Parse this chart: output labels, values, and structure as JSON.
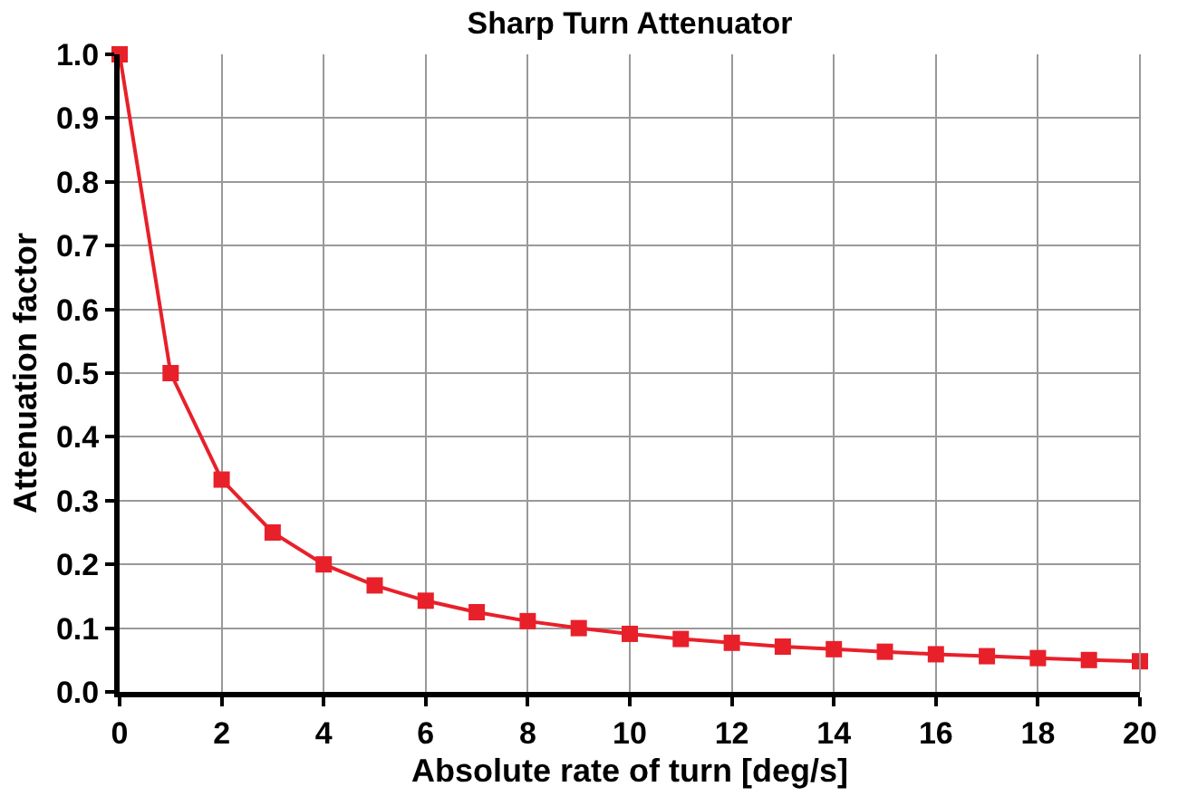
{
  "chart_data": {
    "type": "line",
    "title": "Sharp Turn Attenuator",
    "xlabel": "Absolute rate of turn [deg/s]",
    "ylabel": "Attenuation factor",
    "x": [
      0,
      1,
      2,
      3,
      4,
      5,
      6,
      7,
      8,
      9,
      10,
      11,
      12,
      13,
      14,
      15,
      16,
      17,
      18,
      19,
      20
    ],
    "series": [
      {
        "color": "#e8202a",
        "values": [
          1.0,
          0.5,
          0.333,
          0.25,
          0.2,
          0.167,
          0.143,
          0.125,
          0.111,
          0.1,
          0.091,
          0.083,
          0.077,
          0.071,
          0.067,
          0.063,
          0.059,
          0.056,
          0.053,
          0.05,
          0.048
        ]
      }
    ],
    "xlim": [
      0,
      20
    ],
    "xticks": [
      0,
      2,
      4,
      6,
      8,
      10,
      12,
      14,
      16,
      18,
      20
    ],
    "ylim": [
      0,
      1
    ],
    "yticks": [
      {
        "value": 0,
        "label": "0.0"
      },
      0.1,
      0.2,
      0.3,
      0.4,
      0.5,
      0.6,
      0.7,
      0.8,
      0.9,
      {
        "value": 1,
        "label": "1.0"
      }
    ],
    "grid": true,
    "marker": "square",
    "line_style": "solid"
  }
}
